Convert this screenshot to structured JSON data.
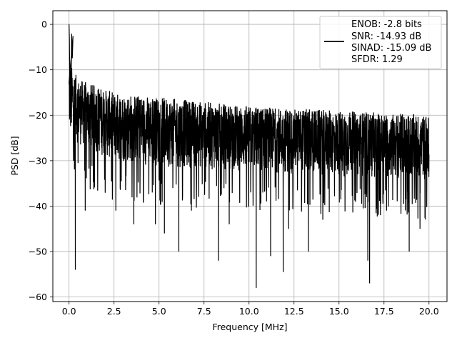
{
  "chart_data": {
    "type": "line",
    "title": "",
    "xlabel": "Frequency [MHz]",
    "ylabel": "PSD [dB]",
    "xlim": [
      -0.9,
      21.0
    ],
    "ylim": [
      -61,
      3
    ],
    "x_ticks": [
      0.0,
      2.5,
      5.0,
      7.5,
      10.0,
      12.5,
      15.0,
      17.5,
      20.0
    ],
    "x_tick_labels": [
      "0.0",
      "2.5",
      "5.0",
      "7.5",
      "10.0",
      "12.5",
      "15.0",
      "17.5",
      "20.0"
    ],
    "y_ticks": [
      0,
      -10,
      -20,
      -30,
      -40,
      -50,
      -60
    ],
    "y_tick_labels": [
      "0",
      "−10",
      "−20",
      "−30",
      "−40",
      "−50",
      "−60"
    ],
    "grid": true,
    "legend_position": "top-right",
    "legend_entries": [
      "ENOB: -2.8 bits",
      "SNR: -14.93 dB",
      "SINAD: -15.09 dB",
      "SFDR: 1.29"
    ],
    "series": [
      {
        "color": "#000000",
        "description": "dense noisy PSD trace",
        "x_range": [
          0.0,
          20.0
        ],
        "peak": {
          "x": 0.0,
          "y": 0.0
        },
        "band_upper": [
          {
            "x": 0.0,
            "y": -8
          },
          {
            "x": 0.5,
            "y": -12
          },
          {
            "x": 2.5,
            "y": -15
          },
          {
            "x": 5.0,
            "y": -16
          },
          {
            "x": 10.0,
            "y": -18
          },
          {
            "x": 15.0,
            "y": -19
          },
          {
            "x": 20.0,
            "y": -20
          }
        ],
        "band_lower": [
          {
            "x": 0.0,
            "y": -28
          },
          {
            "x": 2.5,
            "y": -33
          },
          {
            "x": 5.0,
            "y": -34
          },
          {
            "x": 10.0,
            "y": -35
          },
          {
            "x": 15.0,
            "y": -36
          },
          {
            "x": 20.0,
            "y": -37
          }
        ],
        "dips": [
          {
            "x": 0.35,
            "y": -54
          },
          {
            "x": 0.9,
            "y": -41
          },
          {
            "x": 2.6,
            "y": -41
          },
          {
            "x": 3.6,
            "y": -44
          },
          {
            "x": 4.8,
            "y": -44
          },
          {
            "x": 5.3,
            "y": -46
          },
          {
            "x": 6.1,
            "y": -50
          },
          {
            "x": 6.8,
            "y": -41
          },
          {
            "x": 8.3,
            "y": -52
          },
          {
            "x": 8.9,
            "y": -44
          },
          {
            "x": 10.4,
            "y": -58
          },
          {
            "x": 11.2,
            "y": -51
          },
          {
            "x": 11.9,
            "y": -54.5
          },
          {
            "x": 12.2,
            "y": -45
          },
          {
            "x": 13.3,
            "y": -50
          },
          {
            "x": 14.1,
            "y": -43
          },
          {
            "x": 16.6,
            "y": -52
          },
          {
            "x": 16.7,
            "y": -57
          },
          {
            "x": 17.3,
            "y": -42
          },
          {
            "x": 18.9,
            "y": -50
          },
          {
            "x": 19.5,
            "y": -45
          }
        ]
      }
    ]
  }
}
